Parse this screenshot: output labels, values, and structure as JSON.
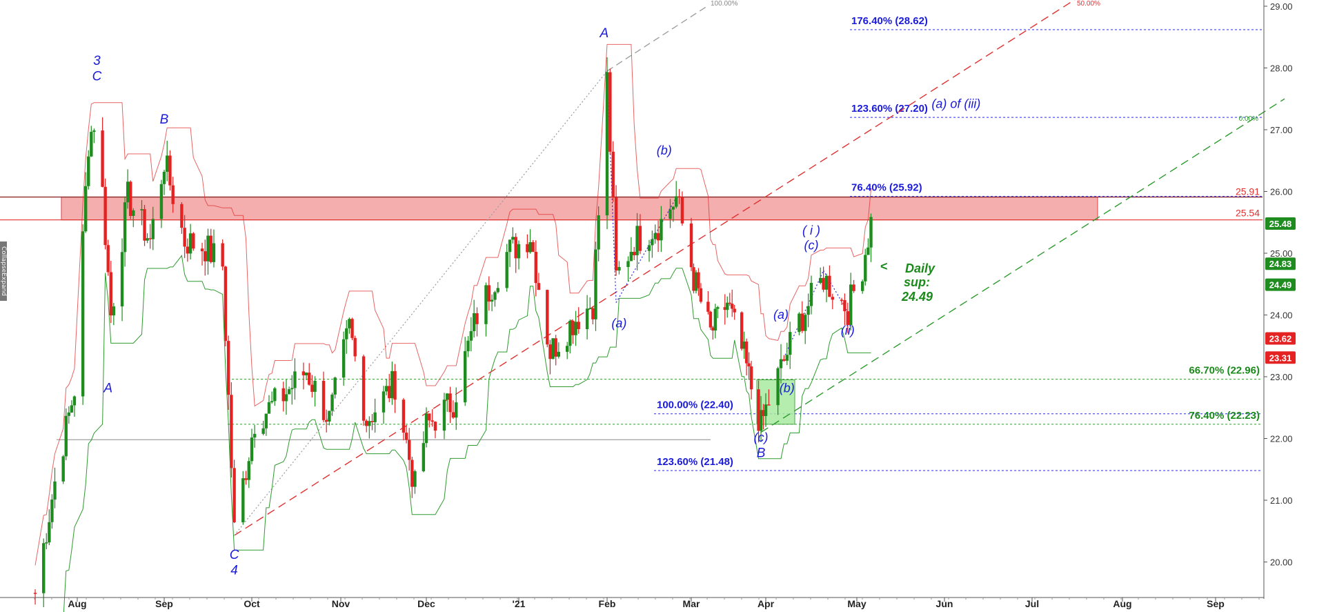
{
  "chart_data": {
    "type": "candlestick",
    "y_axis": {
      "ticks": [
        "29.00",
        "28.00",
        "27.00",
        "26.00",
        "25.00",
        "24.00",
        "23.00",
        "22.00",
        "21.00",
        "20.00"
      ],
      "range": [
        19.4,
        29.1
      ],
      "position": "right"
    },
    "x_axis": {
      "months": [
        {
          "label": "Aug",
          "date": "2020-08-01"
        },
        {
          "label": "Sep",
          "date": "2020-09-01"
        },
        {
          "label": "Oct",
          "date": "2020-10-01"
        },
        {
          "label": "Nov",
          "date": "2020-11-01"
        },
        {
          "label": "Dec",
          "date": "2020-12-01"
        },
        {
          "label": "'21",
          "date": "2021-01-01"
        },
        {
          "label": "Feb",
          "date": "2021-02-01"
        },
        {
          "label": "Mar",
          "date": "2021-03-01"
        },
        {
          "label": "Apr",
          "date": "2021-04-01"
        },
        {
          "label": "May",
          "date": "2021-05-01"
        },
        {
          "label": "Jun",
          "date": "2021-06-01"
        },
        {
          "label": "Jul",
          "date": "2021-07-01"
        },
        {
          "label": "Aug",
          "date": "2021-08-01"
        },
        {
          "label": "Sep",
          "date": "2021-09-01"
        }
      ]
    },
    "price_anchors": [
      [
        "2020-07-17",
        19.5
      ],
      [
        "2020-07-24",
        21.3
      ],
      [
        "2020-07-31",
        22.8
      ],
      [
        "2020-08-05",
        26.8
      ],
      [
        "2020-08-08",
        27.3
      ],
      [
        "2020-08-13",
        24.0
      ],
      [
        "2020-08-19",
        25.9
      ],
      [
        "2020-08-27",
        25.2
      ],
      [
        "2020-09-01",
        26.5
      ],
      [
        "2020-09-08",
        25.2
      ],
      [
        "2020-09-15",
        25.1
      ],
      [
        "2020-09-21",
        24.8
      ],
      [
        "2020-09-25",
        20.5
      ],
      [
        "2020-10-02",
        22.3
      ],
      [
        "2020-10-10",
        22.6
      ],
      [
        "2020-10-20",
        23.1
      ],
      [
        "2020-10-28",
        22.3
      ],
      [
        "2020-11-04",
        23.8
      ],
      [
        "2020-11-10",
        22.3
      ],
      [
        "2020-11-20",
        22.9
      ],
      [
        "2020-11-27",
        21.2
      ],
      [
        "2020-12-01",
        22.2
      ],
      [
        "2020-12-10",
        22.6
      ],
      [
        "2020-12-18",
        24.0
      ],
      [
        "2020-12-28",
        25.0
      ],
      [
        "2021-01-05",
        25.3
      ],
      [
        "2021-01-12",
        23.4
      ],
      [
        "2021-01-20",
        23.9
      ],
      [
        "2021-01-27",
        24.2
      ],
      [
        "2021-02-01",
        27.8
      ],
      [
        "2021-02-04",
        24.6
      ],
      [
        "2021-02-10",
        25.2
      ],
      [
        "2021-02-19",
        25.5
      ],
      [
        "2021-02-24",
        25.9
      ],
      [
        "2021-03-02",
        24.6
      ],
      [
        "2021-03-09",
        23.7
      ],
      [
        "2021-03-16",
        24.2
      ],
      [
        "2021-03-23",
        23.3
      ],
      [
        "2021-03-30",
        22.2
      ],
      [
        "2021-04-05",
        23.0
      ],
      [
        "2021-04-12",
        23.9
      ],
      [
        "2021-04-20",
        24.6
      ],
      [
        "2021-04-28",
        24.1
      ],
      [
        "2021-05-03",
        24.8
      ],
      [
        "2021-05-06",
        25.5
      ]
    ],
    "resistance_zone": {
      "low": 25.54,
      "high": 25.91
    },
    "levels": [
      {
        "label": "25.91",
        "value": 25.91
      },
      {
        "label": "25.54",
        "value": 25.54
      }
    ],
    "fib_levels_upper": [
      {
        "label": "176.40% (28.62)",
        "value": 28.62
      },
      {
        "label": "123.60% (27.20)",
        "value": 27.2
      },
      {
        "label": "76.40% (25.92)",
        "value": 25.92
      }
    ],
    "fib_levels_lower": [
      {
        "label": "100.00% (22.40)",
        "value": 22.4
      },
      {
        "label": "123.60% (21.48)",
        "value": 21.48
      }
    ],
    "fib_levels_green": [
      {
        "label": "66.70% (22.96)",
        "value": 22.96
      },
      {
        "label": "76.40% (22.23)",
        "value": 22.23
      }
    ],
    "price_badges": [
      {
        "label": "25.48",
        "value": 25.48,
        "color": "#1e8c1e"
      },
      {
        "label": "24.83",
        "value": 24.83,
        "color": "#1e8c1e"
      },
      {
        "label": "24.49",
        "value": 24.49,
        "color": "#1e8c1e"
      },
      {
        "label": "23.62",
        "value": 23.62,
        "color": "#e52222"
      },
      {
        "label": "23.31",
        "value": 23.31,
        "color": "#e52222"
      }
    ],
    "wave_labels": [
      {
        "text": "3",
        "date": "2020-08-08",
        "price": 28.05
      },
      {
        "text": "C",
        "date": "2020-08-08",
        "price": 27.8
      },
      {
        "text": "B",
        "date": "2020-09-01",
        "price": 27.1
      },
      {
        "text": "A",
        "date": "2020-08-12",
        "price": 22.75
      },
      {
        "text": "C",
        "date": "2020-09-25",
        "price": 20.05
      },
      {
        "text": "4",
        "date": "2020-09-25",
        "price": 19.8
      },
      {
        "text": "A",
        "date": "2021-01-31",
        "price": 28.5
      },
      {
        "text": "(b)",
        "date": "2021-02-20",
        "price": 26.6
      },
      {
        "text": "(a)",
        "date": "2021-02-05",
        "price": 23.8
      },
      {
        "text": "(a) of (iii)",
        "date": "2021-06-05",
        "price": 27.35
      },
      {
        "text": "( i )",
        "date": "2021-04-16",
        "price": 25.3
      },
      {
        "text": "(c)",
        "date": "2021-04-16",
        "price": 25.06
      },
      {
        "text": "(a)",
        "date": "2021-04-06",
        "price": 23.94
      },
      {
        "text": "(ii)",
        "date": "2021-04-28",
        "price": 23.68
      },
      {
        "text": "(b)",
        "date": "2021-04-08",
        "price": 22.75
      },
      {
        "text": "(c)",
        "date": "2021-03-30",
        "price": 21.95
      },
      {
        "text": "B",
        "date": "2021-03-30",
        "price": 21.7
      }
    ],
    "annotation": {
      "arrow": "<",
      "line1": "Daily",
      "line2": "sup:",
      "line3": "24.49"
    },
    "projection_labels": [
      {
        "text": "100.00%"
      },
      {
        "text": "50.00%"
      },
      {
        "text": "0.00%"
      }
    ],
    "colors": {
      "up": "#1e8c1e",
      "down": "#e52222",
      "wave": "#1a1adb",
      "zone": "#f4a6a6",
      "support_box": "#a8eba0"
    }
  },
  "side_tab": {
    "label": "CollapseExpand"
  }
}
